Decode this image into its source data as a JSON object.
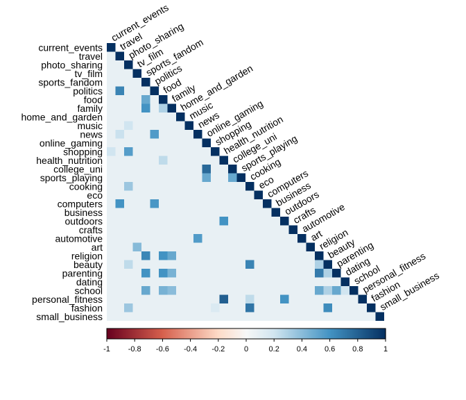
{
  "chart_data": {
    "type": "heatmap",
    "layout": "lower-triangle correlation matrix",
    "variables": [
      "current_events",
      "travel",
      "photo_sharing",
      "tv_film",
      "sports_fandom",
      "politics",
      "food",
      "family",
      "home_and_garden",
      "music",
      "news",
      "online_gaming",
      "shopping",
      "health_nutrition",
      "college_uni",
      "sports_playing",
      "cooking",
      "eco",
      "computers",
      "business",
      "outdoors",
      "crafts",
      "automotive",
      "art",
      "religion",
      "beauty",
      "parenting",
      "dating",
      "school",
      "personal_fitness",
      "fashion",
      "small_business"
    ],
    "strong_correlations": [
      {
        "row": "politics",
        "col": "travel",
        "value": 0.66
      },
      {
        "row": "food",
        "col": "sports_fandom",
        "value": 0.5
      },
      {
        "row": "family",
        "col": "sports_fandom",
        "value": 0.6
      },
      {
        "row": "family",
        "col": "food",
        "value": 0.3
      },
      {
        "row": "music",
        "col": "photo_sharing",
        "value": 0.2
      },
      {
        "row": "news",
        "col": "politics",
        "value": 0.56
      },
      {
        "row": "news",
        "col": "travel",
        "value": 0.22
      },
      {
        "row": "shopping",
        "col": "photo_sharing",
        "value": 0.55
      },
      {
        "row": "shopping",
        "col": "current_events",
        "value": 0.2
      },
      {
        "row": "health_nutrition",
        "col": "food",
        "value": 0.25
      },
      {
        "row": "college_uni",
        "col": "online_gaming",
        "value": 0.77
      },
      {
        "row": "sports_playing",
        "col": "online_gaming",
        "value": 0.5
      },
      {
        "row": "sports_playing",
        "col": "college_uni",
        "value": 0.5
      },
      {
        "row": "cooking",
        "col": "photo_sharing",
        "value": 0.35
      },
      {
        "row": "computers",
        "col": "travel",
        "value": 0.6
      },
      {
        "row": "computers",
        "col": "politics",
        "value": 0.58
      },
      {
        "row": "outdoors",
        "col": "health_nutrition",
        "value": 0.6
      },
      {
        "row": "automotive",
        "col": "news",
        "value": 0.56
      },
      {
        "row": "art",
        "col": "tv_film",
        "value": 0.41
      },
      {
        "row": "religion",
        "col": "sports_fandom",
        "value": 0.65
      },
      {
        "row": "religion",
        "col": "family",
        "value": 0.5
      },
      {
        "row": "religion",
        "col": "food",
        "value": 0.6
      },
      {
        "row": "beauty",
        "col": "cooking",
        "value": 0.66
      },
      {
        "row": "beauty",
        "col": "photo_sharing",
        "value": 0.25
      },
      {
        "row": "beauty",
        "col": "religion",
        "value": 0.3
      },
      {
        "row": "parenting",
        "col": "sports_fandom",
        "value": 0.6
      },
      {
        "row": "parenting",
        "col": "food",
        "value": 0.6
      },
      {
        "row": "parenting",
        "col": "family",
        "value": 0.45
      },
      {
        "row": "parenting",
        "col": "religion",
        "value": 0.7
      },
      {
        "row": "parenting",
        "col": "beauty",
        "value": 0.3
      },
      {
        "row": "school",
        "col": "sports_fandom",
        "value": 0.5
      },
      {
        "row": "school",
        "col": "family",
        "value": 0.4
      },
      {
        "row": "school",
        "col": "food",
        "value": 0.45
      },
      {
        "row": "school",
        "col": "religion",
        "value": 0.5
      },
      {
        "row": "school",
        "col": "parenting",
        "value": 0.5
      },
      {
        "row": "school",
        "col": "beauty",
        "value": 0.3
      },
      {
        "row": "school",
        "col": "dating",
        "value": 0.2
      },
      {
        "row": "personal_fitness",
        "col": "health_nutrition",
        "value": 0.81
      },
      {
        "row": "personal_fitness",
        "col": "outdoors",
        "value": 0.6
      },
      {
        "row": "personal_fitness",
        "col": "cooking",
        "value": 0.25
      },
      {
        "row": "fashion",
        "col": "cooking",
        "value": 0.72
      },
      {
        "row": "fashion",
        "col": "beauty",
        "value": 0.63
      },
      {
        "row": "fashion",
        "col": "photo_sharing",
        "value": 0.35
      },
      {
        "row": "fashion",
        "col": "shopping",
        "value": 0.15
      }
    ],
    "default_offdiagonal_value": 0.08,
    "diagonal_value": 1,
    "colorbar": {
      "range": [
        -1,
        1
      ],
      "ticks": [
        "-1",
        "-0.8",
        "-0.6",
        "-0.4",
        "-0.2",
        "0",
        "0.2",
        "0.4",
        "0.6",
        "0.8",
        "1"
      ],
      "colors": {
        "neg": "#67001F",
        "mid_neg": "#F4A582",
        "zero": "#F7F7F7",
        "mid_pos": "#92C5DE",
        "pos": "#053061"
      }
    }
  }
}
